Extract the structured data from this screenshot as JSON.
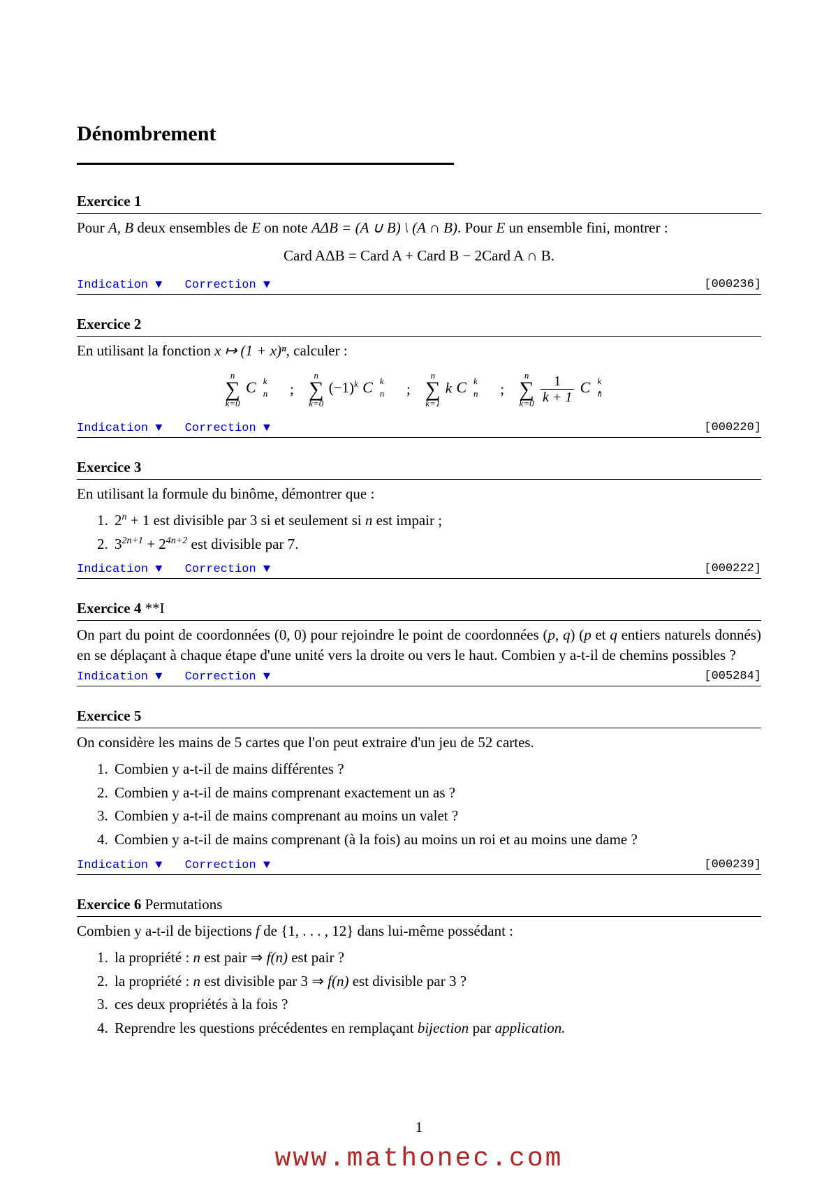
{
  "title": "Dénombrement",
  "links": {
    "indication": "Indication ▼",
    "correction": "Correction ▼"
  },
  "page_number": "1",
  "watermark": "www.mathonec.com",
  "colors": {
    "link": "#0000cc",
    "watermark": "#b22626",
    "text": "#000000",
    "bg": "#ffffff"
  },
  "ex1": {
    "header": "Exercice 1",
    "text_a": "Pour ",
    "text_b": " deux ensembles de ",
    "text_c": " on note ",
    "text_d": ". Pour ",
    "text_e": " un ensemble fini, montrer :",
    "math_AB": "A, B",
    "math_E": "E",
    "math_def": "AΔB = (A ∪ B) \\ (A ∩ B)",
    "display": "Card AΔB = Card A + Card B − 2Card A ∩ B.",
    "ref": "[000236]"
  },
  "ex2": {
    "header": "Exercice 2",
    "text_a": "En utilisant la fonction ",
    "text_b": ", calculer :",
    "math_fn": "x ↦ (1 + x)ⁿ",
    "ref": "[000220]",
    "sums": {
      "s1": {
        "top": "n",
        "bot": "k=0",
        "term_prefix": "",
        "c_base": "C",
        "c_up": "k",
        "c_down": "n"
      },
      "s2": {
        "top": "n",
        "bot": "k=0",
        "term_prefix": "(−1)",
        "prefix_sup": "k",
        "c_base": "C",
        "c_up": "k",
        "c_down": "n"
      },
      "s3": {
        "top": "n",
        "bot": "k=1",
        "term_prefix": "k",
        "c_base": "C",
        "c_up": "k",
        "c_down": "n"
      },
      "s4": {
        "top": "n",
        "bot": "k=0",
        "frac_num": "1",
        "frac_den": "k + 1",
        "c_base": "C",
        "c_up": "k",
        "c_down": "n"
      },
      "sep": ";"
    }
  },
  "ex3": {
    "header": "Exercice 3",
    "text": "En utilisant la formule du binôme, démontrer que :",
    "item1_a": "2",
    "item1_sup": "n",
    "item1_b": " + 1 est divisible par 3 si et seulement si ",
    "item1_n": "n",
    "item1_c": " est impair ;",
    "item2_a": "3",
    "item2_sup1": "2n+1",
    "item2_b": " + 2",
    "item2_sup2": "4n+2",
    "item2_c": " est divisible par 7.",
    "ref": "[000222]"
  },
  "ex4": {
    "header": "Exercice 4",
    "subtitle": "  **I",
    "text_a": "On part du point de coordonnées ",
    "coord1": "(0, 0)",
    "text_b": " pour rejoindre le point de coordonnées ",
    "coord2": "(p, q)",
    "text_c": " (",
    "pq_p": "p",
    "text_d": " et ",
    "pq_q": "q",
    "text_e": " entiers naturels donnés) en se déplaçant à chaque étape d'une unité vers la droite ou vers le haut. Combien y a-t-il de chemins possibles ?",
    "ref": "[005284]"
  },
  "ex5": {
    "header": "Exercice 5",
    "text": "On considère les mains de 5 cartes que l'on peut extraire d'un jeu de 52 cartes.",
    "item1": "Combien y a-t-il de mains différentes ?",
    "item2": "Combien y a-t-il de mains comprenant exactement un as ?",
    "item3": "Combien y a-t-il de mains comprenant au moins un valet ?",
    "item4": "Combien y a-t-il de mains comprenant (à la fois) au moins un roi et au moins une dame ?",
    "ref": "[000239]"
  },
  "ex6": {
    "header": "Exercice 6",
    "subtitle": "  Permutations",
    "text_a": "Combien y a-t-il de bijections ",
    "f": "f",
    "text_b": " de ",
    "set": "{1, . . . , 12}",
    "text_c": " dans lui-même possédant :",
    "item1_a": "la propriété : ",
    "item1_n": "n",
    "item1_b": " est pair ",
    "item1_arrow": "⇒",
    "item1_c": " ",
    "item1_fn": "f(n)",
    "item1_d": " est pair ?",
    "item2_a": "la propriété : ",
    "item2_n": "n",
    "item2_b": " est divisible par 3 ",
    "item2_arrow": "⇒",
    "item2_c": " ",
    "item2_fn": "f(n)",
    "item2_d": " est divisible par 3 ?",
    "item3": "ces deux propriétés à la fois ?",
    "item4_a": "Reprendre les questions précédentes en remplaçant ",
    "item4_bij": "bijection",
    "item4_b": " par ",
    "item4_app": "application."
  }
}
